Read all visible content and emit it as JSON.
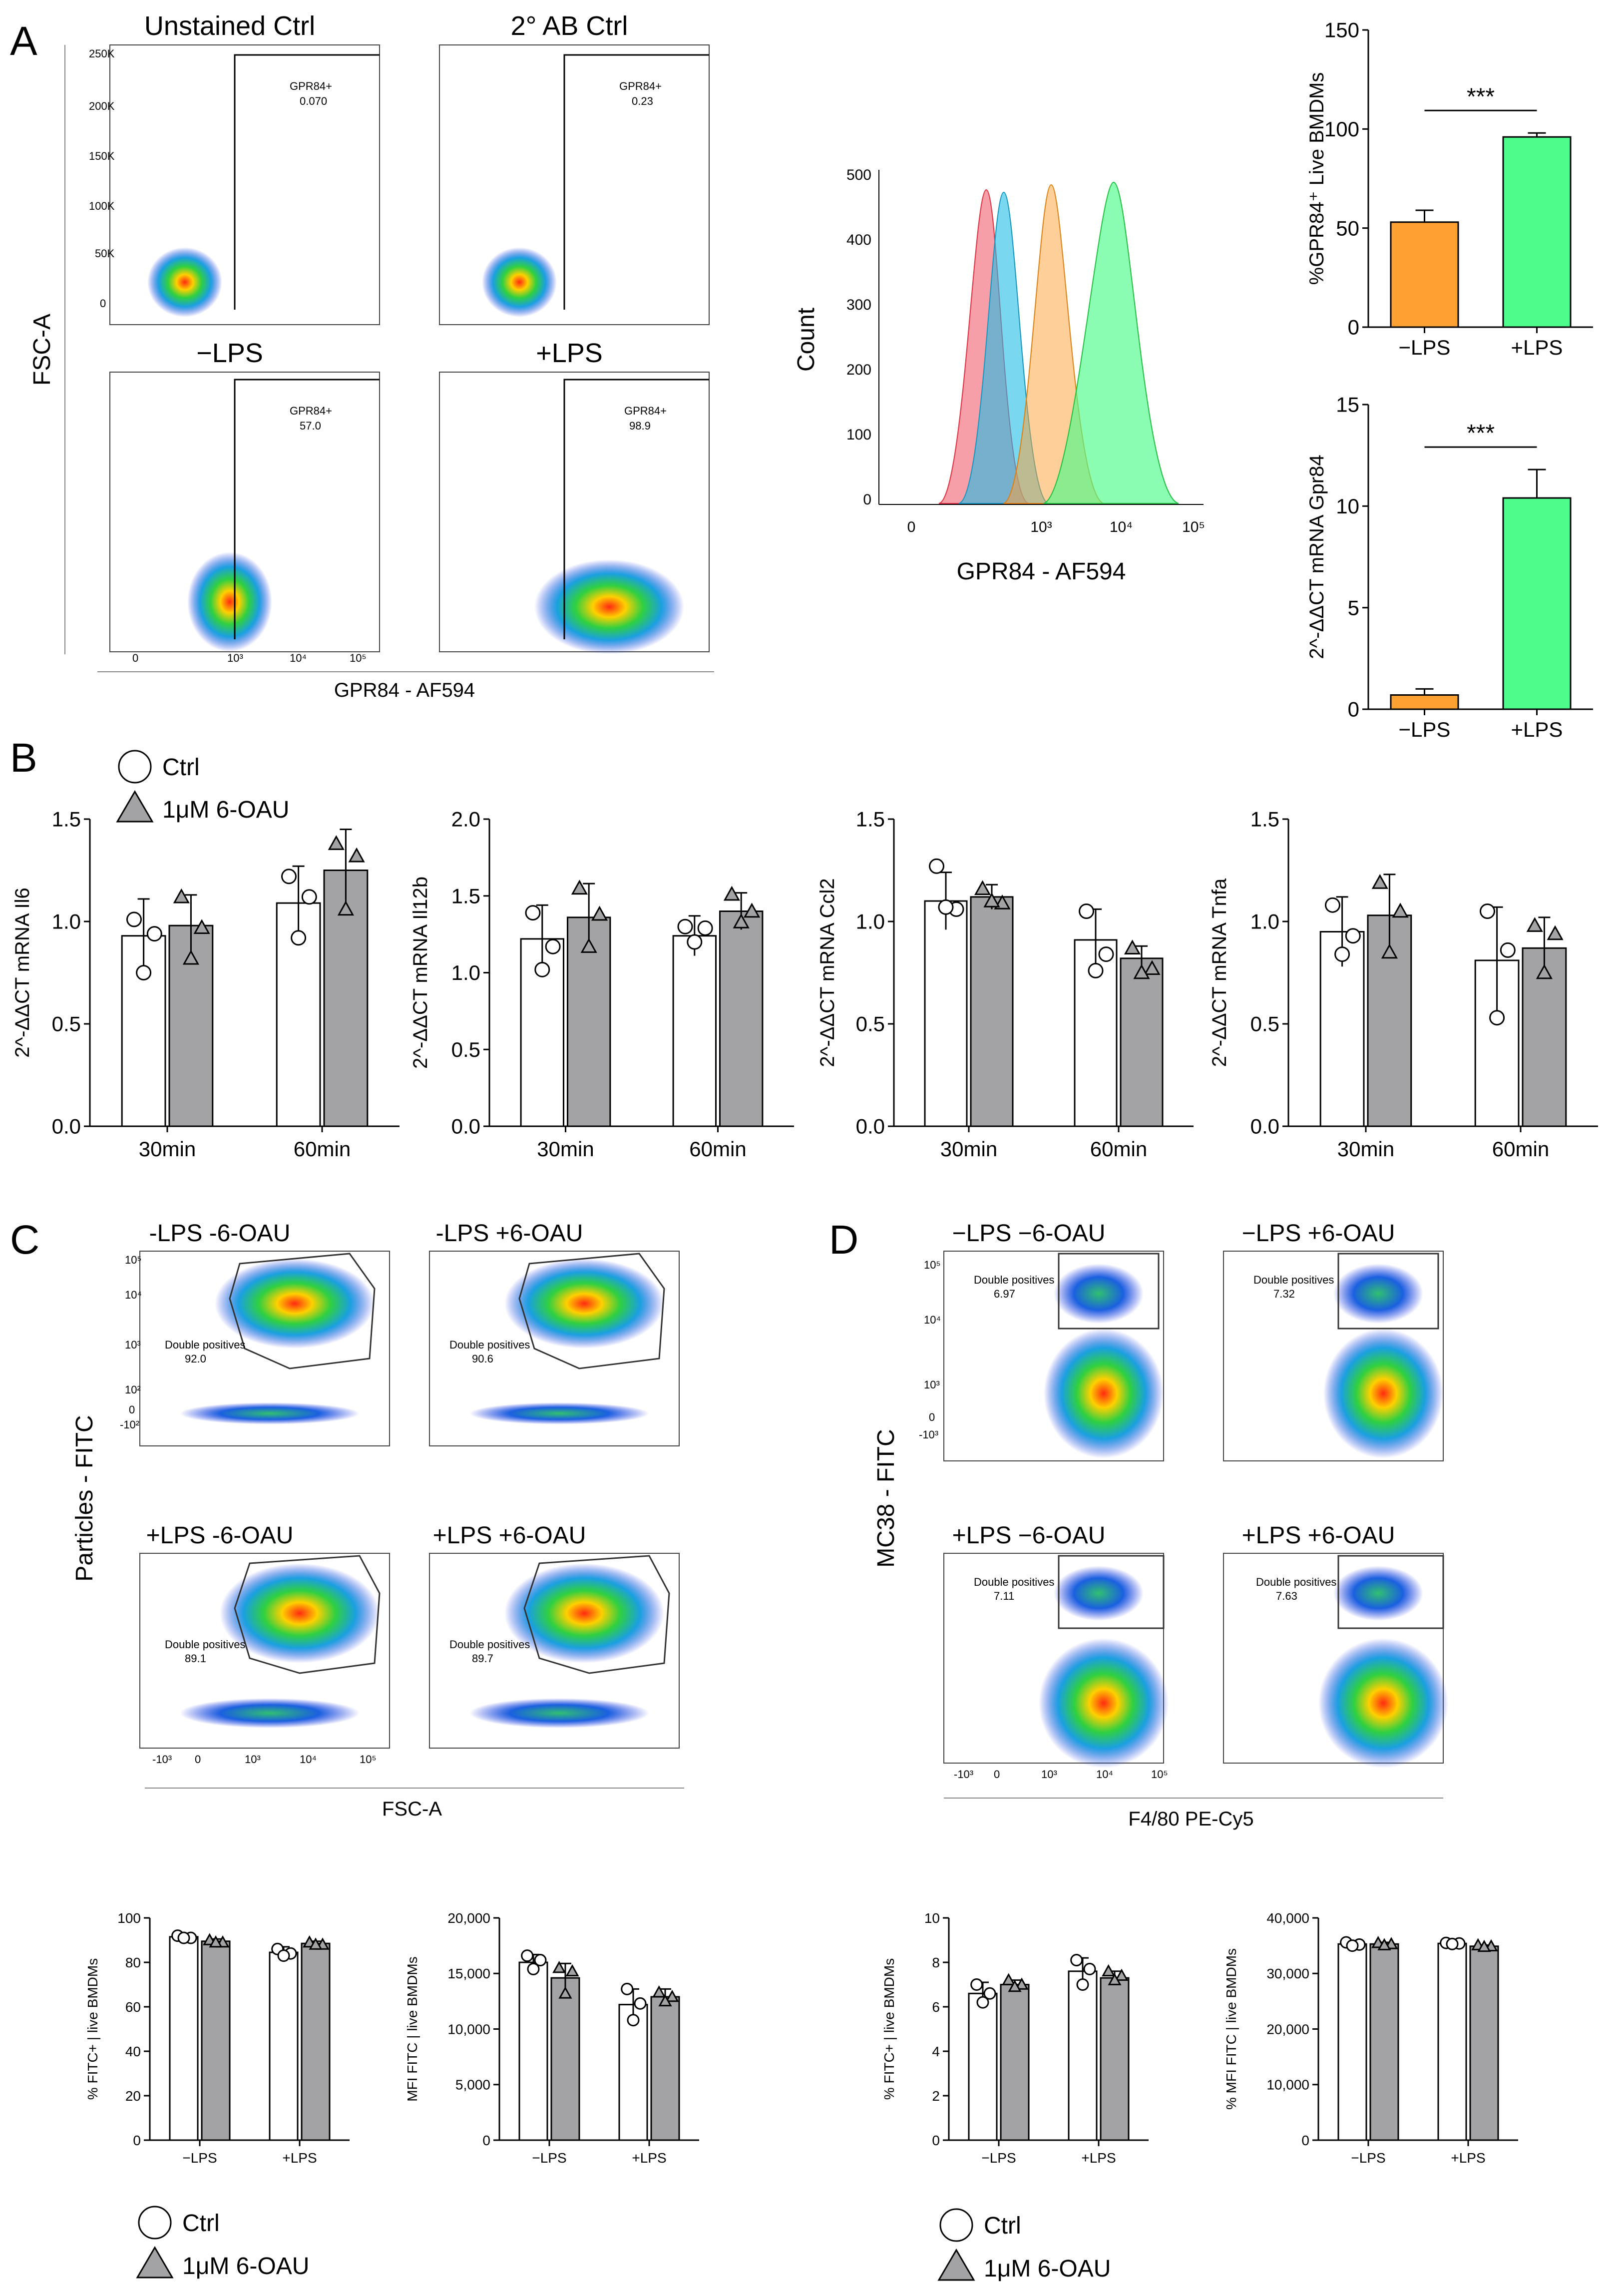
{
  "colors": {
    "orange": "#FFA033",
    "green": "#4DFC8A",
    "white_bar": "#FFFFFF",
    "grey_bar": "#A3A3A5",
    "unstained": "#F05060",
    "secondary_ab": "#22BCE6"
  },
  "panels": {
    "A": "A",
    "B": "B",
    "C": "C",
    "D": "D"
  },
  "panel_A": {
    "flow": {
      "plots": [
        {
          "title": "Unstained Ctrl",
          "title_color": "#F04050",
          "gate_label": "GPR84+",
          "gate_value": "0.070"
        },
        {
          "title": "2° AB Ctrl",
          "title_color": "#22BCE6",
          "gate_label": "GPR84+",
          "gate_value": "0.23"
        },
        {
          "title": "−LPS",
          "title_color": "#FF9A33",
          "gate_label": "GPR84+",
          "gate_value": "57.0"
        },
        {
          "title": "+LPS",
          "title_color": "#33D633",
          "gate_label": "GPR84+",
          "gate_value": "98.9"
        }
      ],
      "y_label": "FSC-A",
      "x_label": "GPR84 - AF594",
      "y_ticks": [
        "250K",
        "200K",
        "150K",
        "100K",
        "50K",
        "0"
      ],
      "x_ticks": [
        "0",
        "10³",
        "10⁴",
        "10⁵"
      ]
    },
    "histogram": {
      "y_label": "Count",
      "x_label": "GPR84 - AF594",
      "y_ticks": [
        "500",
        "400",
        "300",
        "200",
        "100",
        "0"
      ],
      "x_ticks": [
        "0",
        "10³",
        "10⁴",
        "10⁵"
      ]
    }
  },
  "chart_data": [
    {
      "id": "A-bar-percent",
      "type": "bar",
      "categories": [
        "−LPS",
        "+LPS"
      ],
      "values": [
        53,
        96
      ],
      "errors": [
        6,
        2
      ],
      "ylabel": "%GPR84⁺ Live BMDMs",
      "ylim": [
        0,
        150
      ],
      "yticks": [
        0,
        50,
        100,
        150
      ],
      "significance": "***"
    },
    {
      "id": "A-bar-mrna",
      "type": "bar",
      "categories": [
        "−LPS",
        "+LPS"
      ],
      "values": [
        0.7,
        10.4
      ],
      "errors": [
        0.3,
        1.4
      ],
      "ylabel": "2^-ΔΔCT mRNA Gpr84",
      "ylim": [
        0,
        15
      ],
      "yticks": [
        0,
        5,
        10,
        15
      ],
      "significance": "***"
    },
    {
      "id": "B-Il6",
      "type": "bar",
      "categories": [
        "30min",
        "60min"
      ],
      "series": [
        {
          "name": "Ctrl",
          "values": [
            0.93,
            1.09
          ],
          "errors": [
            0.18,
            0.18
          ],
          "points": [
            [
              1.01,
              0.94,
              0.75
            ],
            [
              1.22,
              1.12,
              0.92
            ]
          ]
        },
        {
          "name": "1μM 6-OAU",
          "values": [
            0.98,
            1.25
          ],
          "errors": [
            0.15,
            0.2
          ],
          "points": [
            [
              1.12,
              0.97,
              0.82
            ],
            [
              1.38,
              1.32,
              1.06
            ]
          ]
        }
      ],
      "ylabel": "2^-ΔΔCT mRNA Il6",
      "ylim": [
        0,
        1.5
      ],
      "yticks": [
        "0.0",
        "0.5",
        "1.0",
        "1.5"
      ]
    },
    {
      "id": "B-Il12b",
      "type": "bar",
      "categories": [
        "30min",
        "60min"
      ],
      "series": [
        {
          "name": "Ctrl",
          "values": [
            1.22,
            1.24
          ],
          "errors": [
            0.22,
            0.13
          ],
          "points": [
            [
              1.39,
              1.17,
              1.02
            ],
            [
              1.3,
              1.29,
              1.2
            ]
          ]
        },
        {
          "name": "1μM 6-OAU",
          "values": [
            1.36,
            1.4
          ],
          "errors": [
            0.22,
            0.12
          ],
          "points": [
            [
              1.55,
              1.38,
              1.17
            ],
            [
              1.51,
              1.4,
              1.33
            ]
          ]
        }
      ],
      "ylabel": "2^-ΔΔCT mRNA Il12b",
      "ylim": [
        0,
        2.0
      ],
      "yticks": [
        "0.0",
        "0.5",
        "1.0",
        "1.5",
        "2.0"
      ]
    },
    {
      "id": "B-Ccl2",
      "type": "bar",
      "categories": [
        "30min",
        "60min"
      ],
      "series": [
        {
          "name": "Ctrl",
          "values": [
            1.1,
            0.91
          ],
          "errors": [
            0.14,
            0.15
          ],
          "points": [
            [
              1.27,
              1.06,
              1.07
            ],
            [
              1.05,
              0.84,
              0.76
            ]
          ]
        },
        {
          "name": "1μM 6-OAU",
          "values": [
            1.12,
            0.82
          ],
          "errors": [
            0.06,
            0.06
          ],
          "points": [
            [
              1.16,
              1.09,
              1.1
            ],
            [
              0.87,
              0.77,
              0.75
            ]
          ]
        }
      ],
      "ylabel": "2^-ΔΔCT mRNA Ccl2",
      "ylim": [
        0,
        1.5
      ],
      "yticks": [
        "0.0",
        "0.5",
        "1.0",
        "1.5"
      ]
    },
    {
      "id": "B-Tnfa",
      "type": "bar",
      "categories": [
        "30min",
        "60min"
      ],
      "series": [
        {
          "name": "Ctrl",
          "values": [
            0.95,
            0.81
          ],
          "errors": [
            0.17,
            0.26
          ],
          "points": [
            [
              1.08,
              0.93,
              0.84
            ],
            [
              1.05,
              0.86,
              0.53
            ]
          ]
        },
        {
          "name": "1μM 6-OAU",
          "values": [
            1.03,
            0.87
          ],
          "errors": [
            0.2,
            0.15
          ],
          "points": [
            [
              1.19,
              1.05,
              0.85
            ],
            [
              0.98,
              0.94,
              0.75
            ]
          ]
        }
      ],
      "ylabel": "2^-ΔΔCT mRNA Tnfa",
      "ylim": [
        0,
        1.5
      ],
      "yticks": [
        "0.0",
        "0.5",
        "1.0",
        "1.5"
      ]
    },
    {
      "id": "C-pct",
      "type": "bar",
      "categories": [
        "−LPS",
        "+LPS"
      ],
      "series": [
        {
          "name": "Ctrl",
          "values": [
            91.5,
            84.5
          ],
          "errors": [
            1.0,
            2.5
          ],
          "points": [
            [
              92,
              91,
              91
            ],
            [
              86,
              84,
              83
            ]
          ]
        },
        {
          "name": "1μM 6-OAU",
          "values": [
            89.5,
            88.5
          ],
          "errors": [
            1.0,
            1.0
          ],
          "points": [
            [
              90,
              89,
              89
            ],
            [
              89,
              88,
              88
            ]
          ]
        }
      ],
      "ylabel": "% FITC+ | live BMDMs",
      "ylim": [
        0,
        100
      ],
      "yticks": [
        "0",
        "20",
        "40",
        "60",
        "80",
        "100"
      ]
    },
    {
      "id": "C-mfi",
      "type": "bar",
      "categories": [
        "−LPS",
        "+LPS"
      ],
      "series": [
        {
          "name": "Ctrl",
          "values": [
            16000,
            12200
          ],
          "errors": [
            700,
            1400
          ],
          "points": [
            [
              16600,
              16200,
              15400
            ],
            [
              13600,
              12300,
              10800
            ]
          ]
        },
        {
          "name": "1μM 6-OAU",
          "values": [
            14600,
            12900
          ],
          "errors": [
            1300,
            700
          ],
          "points": [
            [
              15500,
              15200,
              13200
            ],
            [
              13300,
              12900,
              12500
            ]
          ]
        }
      ],
      "ylabel": "MFI FITC | live BMDMs",
      "ylim": [
        0,
        20000
      ],
      "yticks": [
        "0",
        "5,000",
        "10,000",
        "15,000",
        "20,000"
      ]
    },
    {
      "id": "D-pct",
      "type": "bar",
      "categories": [
        "−LPS",
        "+LPS"
      ],
      "series": [
        {
          "name": "Ctrl",
          "values": [
            6.6,
            7.6
          ],
          "errors": [
            0.5,
            0.6
          ],
          "points": [
            [
              7.0,
              6.6,
              6.2
            ],
            [
              8.1,
              7.7,
              7.0
            ]
          ]
        },
        {
          "name": "1μM 6-OAU",
          "values": [
            7.0,
            7.3
          ],
          "errors": [
            0.2,
            0.3
          ],
          "points": [
            [
              7.2,
              7.0,
              6.9
            ],
            [
              7.6,
              7.4,
              7.2
            ]
          ]
        }
      ],
      "ylabel": "% FITC+ | live BMDMs",
      "ylim": [
        0,
        10
      ],
      "yticks": [
        "0",
        "2",
        "4",
        "6",
        "8",
        "10"
      ]
    },
    {
      "id": "D-mfi",
      "type": "bar",
      "categories": [
        "−LPS",
        "+LPS"
      ],
      "series": [
        {
          "name": "Ctrl",
          "values": [
            35300,
            35400
          ],
          "errors": [
            300,
            200
          ],
          "points": [
            [
              35600,
              35200,
              35000
            ],
            [
              35500,
              35400,
              35300
            ]
          ]
        },
        {
          "name": "1μM 6-OAU",
          "values": [
            35300,
            34900
          ],
          "errors": [
            300,
            200
          ],
          "points": [
            [
              35500,
              35300,
              35100
            ],
            [
              35100,
              34900,
              34800
            ]
          ]
        }
      ],
      "ylabel": "% MFI FITC | live BMDMs",
      "ylim": [
        0,
        40000
      ],
      "yticks": [
        "0",
        "10,000",
        "20,000",
        "30,000",
        "40,000"
      ]
    }
  ],
  "panel_B": {
    "legend": [
      {
        "label": "Ctrl"
      },
      {
        "label": "1μM 6-OAU"
      }
    ]
  },
  "panel_C": {
    "plots": [
      {
        "title": "-LPS -6-OAU",
        "gate_label": "Double positives",
        "gate_value": "92.0"
      },
      {
        "title": "-LPS +6-OAU",
        "gate_label": "Double positives",
        "gate_value": "90.6"
      },
      {
        "title": "+LPS -6-OAU",
        "gate_label": "Double positives",
        "gate_value": "89.1"
      },
      {
        "title": "+LPS +6-OAU",
        "gate_label": "Double positives",
        "gate_value": "89.7"
      }
    ],
    "y_label": "Particles - FITC",
    "x_label": "FSC-A",
    "y_ticks": [
      "10⁵",
      "10⁴",
      "10³",
      "10²",
      "0",
      "-10²"
    ],
    "x_ticks": [
      "-10³",
      "0",
      "10³",
      "10⁴",
      "10⁵"
    ]
  },
  "panel_D": {
    "plots": [
      {
        "title": "−LPS −6-OAU",
        "gate_label": "Double positives",
        "gate_value": "6.97"
      },
      {
        "title": "−LPS +6-OAU",
        "gate_label": "Double positives",
        "gate_value": "7.32"
      },
      {
        "title": "+LPS −6-OAU",
        "gate_label": "Double positives",
        "gate_value": "7.11"
      },
      {
        "title": "+LPS +6-OAU",
        "gate_label": "Double positives",
        "gate_value": "7.63"
      }
    ],
    "y_label": "MC38 - FITC",
    "x_label": "F4/80 PE-Cy5",
    "y_ticks": [
      "10⁵",
      "10⁴",
      "10³",
      "0",
      "-10³"
    ],
    "x_ticks": [
      "-10³",
      "0",
      "10³",
      "10⁴",
      "10⁵"
    ]
  },
  "legend_C": [
    {
      "label": "Ctrl"
    },
    {
      "label": "1μM 6-OAU"
    }
  ],
  "legend_D": [
    {
      "label": "Ctrl"
    },
    {
      "label": "1μM 6-OAU"
    }
  ]
}
